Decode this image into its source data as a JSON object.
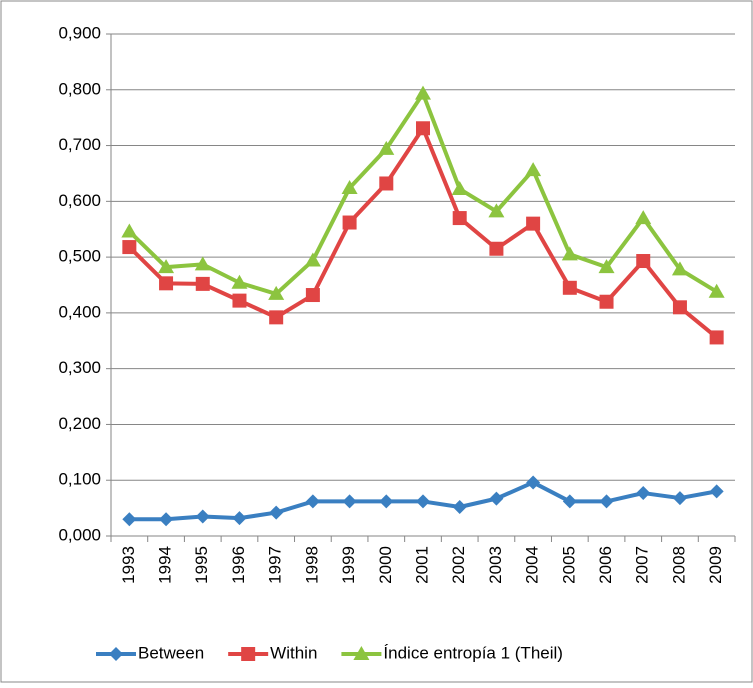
{
  "chart_data": {
    "type": "line",
    "categories": [
      "1993",
      "1994",
      "1995",
      "1996",
      "1997",
      "1998",
      "1999",
      "2000",
      "2001",
      "2002",
      "2003",
      "2004",
      "2005",
      "2006",
      "2007",
      "2008",
      "2009"
    ],
    "series": [
      {
        "name": "Between",
        "color": "#3a7fc1",
        "marker": "diamond",
        "values": [
          0.03,
          0.03,
          0.035,
          0.032,
          0.042,
          0.062,
          0.062,
          0.062,
          0.062,
          0.052,
          0.067,
          0.096,
          0.062,
          0.062,
          0.077,
          0.068,
          0.08
        ]
      },
      {
        "name": "Within",
        "color": "#e04544",
        "marker": "square",
        "values": [
          0.518,
          0.453,
          0.452,
          0.422,
          0.392,
          0.432,
          0.562,
          0.632,
          0.731,
          0.57,
          0.515,
          0.56,
          0.445,
          0.42,
          0.493,
          0.41,
          0.356
        ]
      },
      {
        "name": "Índice entropía 1 (Theil)",
        "color": "#8cc43f",
        "marker": "triangle",
        "values": [
          0.546,
          0.482,
          0.487,
          0.454,
          0.434,
          0.494,
          0.624,
          0.694,
          0.793,
          0.622,
          0.582,
          0.656,
          0.505,
          0.482,
          0.57,
          0.478,
          0.438
        ]
      }
    ],
    "ylim": [
      0,
      0.9
    ],
    "yticks": [
      {
        "value": 0,
        "label": "0,000"
      },
      {
        "value": 0.1,
        "label": "0,100"
      },
      {
        "value": 0.2,
        "label": "0,200"
      },
      {
        "value": 0.3,
        "label": "0,300"
      },
      {
        "value": 0.4,
        "label": "0,400"
      },
      {
        "value": 0.5,
        "label": "0,500"
      },
      {
        "value": 0.6,
        "label": "0,600"
      },
      {
        "value": 0.7,
        "label": "0,700"
      },
      {
        "value": 0.8,
        "label": "0,800"
      },
      {
        "value": 0.9,
        "label": "0,900"
      }
    ],
    "grid": true,
    "legend": "bottom"
  }
}
